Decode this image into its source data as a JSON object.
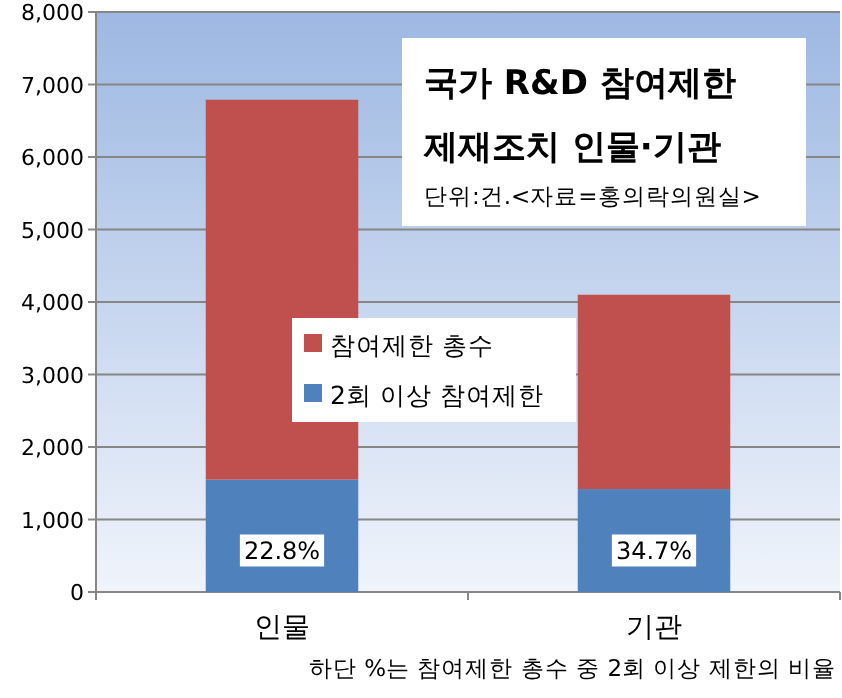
{
  "chart_data": {
    "type": "bar",
    "title": "국가 R&D 참여제한 제재조치 인물·기관",
    "subtitle": "단위:건.<자료=홍의락의원실>",
    "categories": [
      "인물",
      "기관"
    ],
    "stacked": true,
    "series": [
      {
        "name": "2회 이상 참여제한",
        "color": "#4f81bd",
        "values": [
          1550,
          1420
        ]
      },
      {
        "name": "참여제한 총수",
        "color": "#c0504d",
        "values": [
          5240,
          2680
        ]
      }
    ],
    "ylim": [
      0,
      8000
    ],
    "yticks": [
      0,
      {
        "value": 1000,
        "label": "1,000"
      },
      {
        "value": 2000,
        "label": "2,000"
      },
      {
        "value": 3000,
        "label": "3,000"
      },
      {
        "value": 4000,
        "label": "4,000"
      },
      {
        "value": 5000,
        "label": "5,000"
      },
      {
        "value": 6000,
        "label": "6,000"
      },
      {
        "value": 7000,
        "label": "7,000"
      },
      {
        "value": 8000,
        "label": "8,000"
      }
    ],
    "grid": "y",
    "legend": "center",
    "annotations": [
      {
        "text": "22.8%",
        "x": "인물",
        "y": 600
      },
      {
        "text": "34.7%",
        "x": "기관",
        "y": 600
      },
      "하단 %는 참여제한 총수 중 2회 이상 제한의 비율"
    ]
  }
}
